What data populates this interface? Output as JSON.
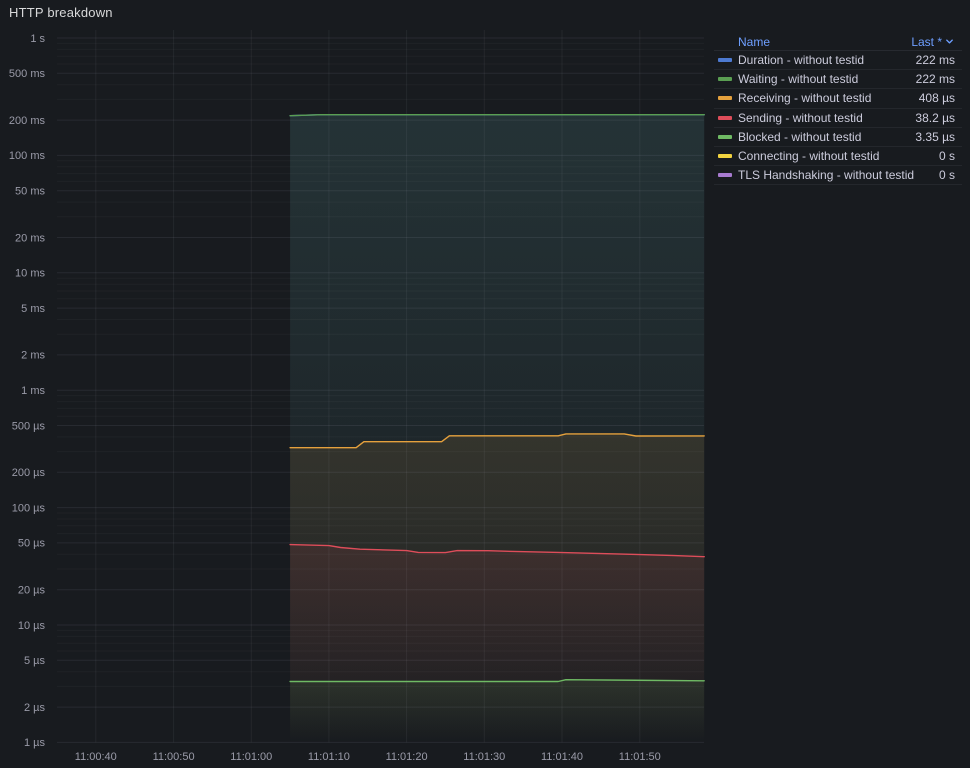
{
  "panel": {
    "title": "HTTP breakdown"
  },
  "colors": {
    "background": "#181B1F",
    "link_blue": "#6E9FFF",
    "text_primary": "#CCCCDC",
    "axis_text": "rgba(204,204,220,0.72)",
    "grid_major": "rgba(204,204,220,0.09)",
    "grid_minor": "rgba(204,204,220,0.045)"
  },
  "legend": {
    "name_header": "Name",
    "last_header": "Last *",
    "sort_icon": "chevron-down"
  },
  "chart_data": {
    "type": "line",
    "title": "HTTP breakdown",
    "y_scale": "log",
    "x_unit": "seconds since 11:00:35",
    "legend_position": "right",
    "grid": true,
    "x_ticks": [
      {
        "label": "11:00:40",
        "t": 5
      },
      {
        "label": "11:00:50",
        "t": 15
      },
      {
        "label": "11:01:00",
        "t": 25
      },
      {
        "label": "11:01:10",
        "t": 35
      },
      {
        "label": "11:01:20",
        "t": 45
      },
      {
        "label": "11:01:30",
        "t": 55
      },
      {
        "label": "11:01:40",
        "t": 65
      },
      {
        "label": "11:01:50",
        "t": 75
      }
    ],
    "y_ticks": [
      {
        "label": "1 s",
        "value": 1
      },
      {
        "label": "500 ms",
        "value": 0.5
      },
      {
        "label": "200 ms",
        "value": 0.2
      },
      {
        "label": "100 ms",
        "value": 0.1
      },
      {
        "label": "50 ms",
        "value": 0.05
      },
      {
        "label": "20 ms",
        "value": 0.02
      },
      {
        "label": "10 ms",
        "value": 0.01
      },
      {
        "label": "5 ms",
        "value": 0.005
      },
      {
        "label": "2 ms",
        "value": 0.002
      },
      {
        "label": "1 ms",
        "value": 0.001
      },
      {
        "label": "500 µs",
        "value": 0.0005
      },
      {
        "label": "200 µs",
        "value": 0.0002
      },
      {
        "label": "100 µs",
        "value": 0.0001
      },
      {
        "label": "50 µs",
        "value": 5e-05
      },
      {
        "label": "20 µs",
        "value": 2e-05
      },
      {
        "label": "10 µs",
        "value": 1e-05
      },
      {
        "label": "5 µs",
        "value": 5e-06
      },
      {
        "label": "2 µs",
        "value": 2e-06
      },
      {
        "label": "1 µs",
        "value": 1e-06
      }
    ],
    "series": [
      {
        "name": "Duration - without testid",
        "last": "222 ms",
        "color": "#4D7AD1",
        "points": [
          [
            30,
            0.218
          ],
          [
            34,
            0.222
          ],
          [
            83.3,
            0.222
          ]
        ]
      },
      {
        "name": "Waiting - without testid",
        "last": "222 ms",
        "color": "#5A9E52",
        "points": [
          [
            30,
            0.218
          ],
          [
            34,
            0.222
          ],
          [
            83.3,
            0.222
          ]
        ]
      },
      {
        "name": "Receiving - without testid",
        "last": "408 µs",
        "color": "#E5A13D",
        "points": [
          [
            30,
            0.000324
          ],
          [
            38.5,
            0.000324
          ],
          [
            39.5,
            0.000364
          ],
          [
            49.5,
            0.000364
          ],
          [
            50.5,
            0.000409
          ],
          [
            64.5,
            0.000409
          ],
          [
            65.5,
            0.000424
          ],
          [
            73,
            0.000424
          ],
          [
            74.5,
            0.000407
          ],
          [
            83.3,
            0.000408
          ]
        ]
      },
      {
        "name": "Sending - without testid",
        "last": "38.2 µs",
        "color": "#DE4D5A",
        "points": [
          [
            30,
            4.84e-05
          ],
          [
            35,
            4.75e-05
          ],
          [
            36.5,
            4.57e-05
          ],
          [
            39,
            4.42e-05
          ],
          [
            45,
            4.3e-05
          ],
          [
            46.5,
            4.15e-05
          ],
          [
            50,
            4.14e-05
          ],
          [
            51.5,
            4.3e-05
          ],
          [
            55.5,
            4.29e-05
          ],
          [
            59.5,
            4.22e-05
          ],
          [
            64.5,
            4.15e-05
          ],
          [
            69.5,
            4.07e-05
          ],
          [
            74.5,
            3.99e-05
          ],
          [
            79.5,
            3.9e-05
          ],
          [
            83.3,
            3.82e-05
          ]
        ]
      },
      {
        "name": "Blocked - without testid",
        "last": "3.35 µs",
        "color": "#6FBA64",
        "points": [
          [
            30,
            3.3e-06
          ],
          [
            64.5,
            3.3e-06
          ],
          [
            65.5,
            3.42e-06
          ],
          [
            83.3,
            3.35e-06
          ]
        ]
      },
      {
        "name": "Connecting - without testid",
        "last": "0 s",
        "color": "#F2D340",
        "points": []
      },
      {
        "name": "TLS Handshaking - without testid",
        "last": "0 s",
        "color": "#A87BD0",
        "points": []
      }
    ]
  }
}
